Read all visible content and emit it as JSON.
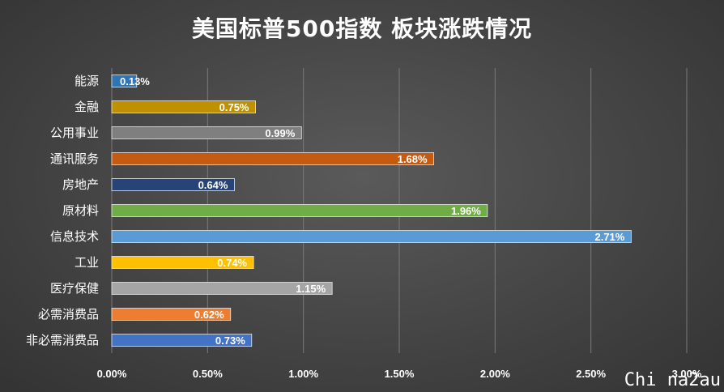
{
  "chart_data": {
    "type": "bar",
    "orientation": "horizontal",
    "title": "美国标普500指数 板块涨跌情况",
    "categories": [
      "能源",
      "金融",
      "公用事业",
      "通讯服务",
      "房地产",
      "原材料",
      "信息技术",
      "工业",
      "医疗保健",
      "必需消费品",
      "非必需消费品"
    ],
    "values": [
      0.13,
      0.75,
      0.99,
      1.68,
      0.64,
      1.96,
      2.71,
      0.74,
      1.15,
      0.62,
      0.73
    ],
    "data_labels": [
      "0.13%",
      "0.75%",
      "0.99%",
      "1.68%",
      "0.64%",
      "1.96%",
      "2.71%",
      "0.74%",
      "1.15%",
      "0.62%",
      "0.73%"
    ],
    "colors": [
      "#2e75b6",
      "#bf9000",
      "#7f7f7f",
      "#c55a11",
      "#264478",
      "#70ad47",
      "#5b9bd5",
      "#ffc000",
      "#a5a5a5",
      "#ed7d31",
      "#4472c4"
    ],
    "xlim": [
      0,
      3
    ],
    "xticks": [
      0,
      0.5,
      1,
      1.5,
      2,
      2.5,
      3
    ],
    "xtick_labels": [
      "0.00%",
      "0.50%",
      "1.00%",
      "1.50%",
      "2.00%",
      "2.50%",
      "3.00%"
    ],
    "xlabel": "",
    "ylabel": "",
    "grid": "vertical",
    "legend": "none"
  },
  "watermark": "Chi na2au"
}
